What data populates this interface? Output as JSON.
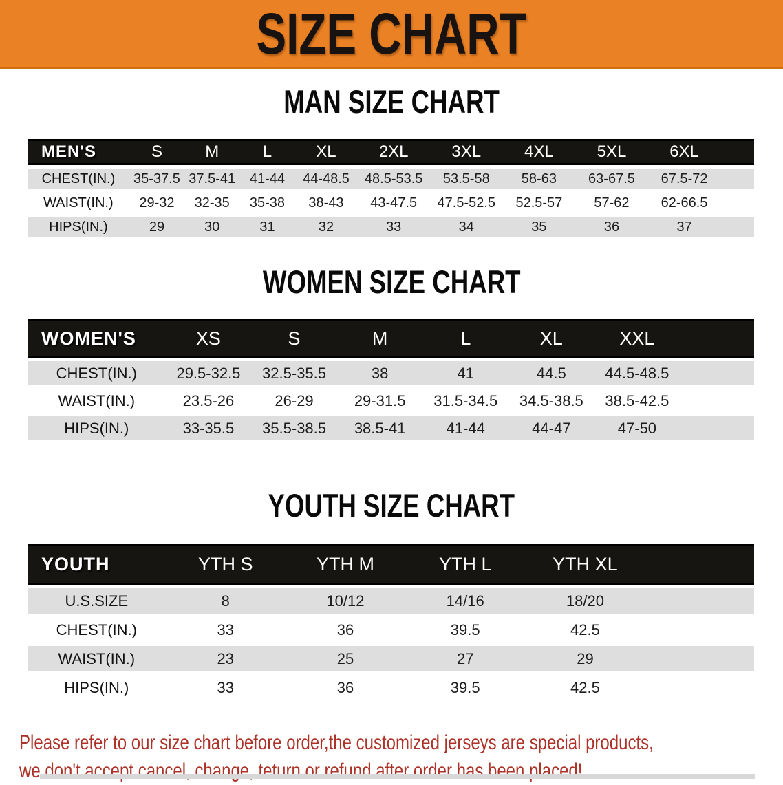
{
  "banner": {
    "title": "SIZE CHART"
  },
  "colors": {
    "banner_bg": "#ea8124",
    "table_header_bg": "#171512",
    "alt_row_bg": "#dedede",
    "note_text": "#ad3228"
  },
  "men": {
    "heading": "MAN SIZE CHART",
    "corner_label": "MEN'S",
    "columns": [
      "S",
      "M",
      "L",
      "XL",
      "2XL",
      "3XL",
      "4XL",
      "5XL",
      "6XL"
    ],
    "rows": [
      {
        "label": "CHEST(IN.)",
        "values": [
          "35-37.5",
          "37.5-41",
          "41-44",
          "44-48.5",
          "48.5-53.5",
          "53.5-58",
          "58-63",
          "63-67.5",
          "67.5-72"
        ]
      },
      {
        "label": "WAIST(IN.)",
        "values": [
          "29-32",
          "32-35",
          "35-38",
          "38-43",
          "43-47.5",
          "47.5-52.5",
          "52.5-57",
          "57-62",
          "62-66.5"
        ]
      },
      {
        "label": "HIPS(IN.)",
        "values": [
          "29",
          "30",
          "31",
          "32",
          "33",
          "34",
          "35",
          "36",
          "37"
        ]
      }
    ]
  },
  "women": {
    "heading": "WOMEN SIZE CHART",
    "corner_label": "WOMEN'S",
    "columns": [
      "XS",
      "S",
      "M",
      "L",
      "XL",
      "XXL"
    ],
    "rows": [
      {
        "label": "CHEST(IN.)",
        "values": [
          "29.5-32.5",
          "32.5-35.5",
          "38",
          "41",
          "44.5",
          "44.5-48.5"
        ]
      },
      {
        "label": "WAIST(IN.)",
        "values": [
          "23.5-26",
          "26-29",
          "29-31.5",
          "31.5-34.5",
          "34.5-38.5",
          "38.5-42.5"
        ]
      },
      {
        "label": "HIPS(IN.)",
        "values": [
          "33-35.5",
          "35.5-38.5",
          "38.5-41",
          "41-44",
          "44-47",
          "47-50"
        ]
      }
    ]
  },
  "youth": {
    "heading": "YOUTH SIZE CHART",
    "corner_label": "YOUTH",
    "columns": [
      "YTH S",
      "YTH M",
      "YTH L",
      "YTH XL"
    ],
    "rows": [
      {
        "label": "U.S.SIZE",
        "values": [
          "8",
          "10/12",
          "14/16",
          "18/20"
        ]
      },
      {
        "label": "CHEST(IN.)",
        "values": [
          "33",
          "36",
          "39.5",
          "42.5"
        ]
      },
      {
        "label": "WAIST(IN.)",
        "values": [
          "23",
          "25",
          "27",
          "29"
        ]
      },
      {
        "label": "HIPS(IN.)",
        "values": [
          "33",
          "36",
          "39.5",
          "42.5"
        ]
      }
    ]
  },
  "note": {
    "line1": "Please refer to our size chart before order,the customized jerseys are special products,",
    "line2": "we don't accept cancel, change, teturn or refund after order has been placed!"
  }
}
